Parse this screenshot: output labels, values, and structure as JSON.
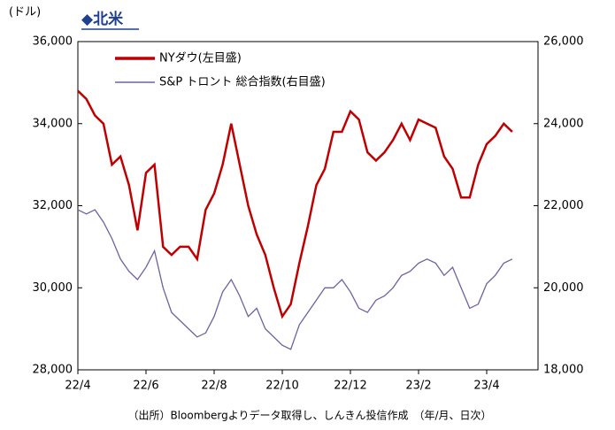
{
  "chart_data": {
    "type": "line",
    "title": "◆北米",
    "y_unit": "(ドル)",
    "source": "（出所）Bloombergよりデータ取得し、しんきん投信作成　（年/月、日次）",
    "categories": [
      "22/4",
      null,
      null,
      null,
      null,
      null,
      null,
      null,
      "22/6",
      null,
      null,
      null,
      null,
      null,
      null,
      null,
      "22/8",
      null,
      null,
      null,
      null,
      null,
      null,
      null,
      "22/10",
      null,
      null,
      null,
      null,
      null,
      null,
      null,
      "22/12",
      null,
      null,
      null,
      null,
      null,
      null,
      null,
      "23/2",
      null,
      null,
      null,
      null,
      null,
      null,
      null,
      "23/4",
      null,
      null,
      null
    ],
    "series": [
      {
        "name": "NYダウ(左目盛)",
        "color": "#c00000",
        "axis": "y",
        "values": [
          34800,
          34600,
          34200,
          34000,
          33000,
          33200,
          32500,
          31400,
          32800,
          33000,
          31000,
          30800,
          31000,
          31000,
          30700,
          31900,
          32300,
          33000,
          34000,
          33000,
          32000,
          31300,
          30800,
          30000,
          29300,
          29600,
          30600,
          31500,
          32500,
          32900,
          33800,
          33800,
          34300,
          34100,
          33300,
          33100,
          33300,
          33600,
          34000,
          33600,
          34100,
          34000,
          33900,
          33200,
          32900,
          32200,
          32200,
          33000,
          33500,
          33700,
          34000,
          33800
        ]
      },
      {
        "name": "S&P トロント 総合指数(右目盛)",
        "color": "#7060a0",
        "axis": "y2",
        "values": [
          21900,
          21800,
          21900,
          21600,
          21200,
          20700,
          20400,
          20200,
          20500,
          20900,
          20000,
          19400,
          19200,
          19000,
          18800,
          18900,
          19300,
          19900,
          20200,
          19800,
          19300,
          19500,
          19000,
          18800,
          18600,
          18500,
          19100,
          19400,
          19700,
          20000,
          20000,
          20200,
          19900,
          19500,
          19400,
          19700,
          19800,
          20000,
          20300,
          20400,
          20600,
          20700,
          20600,
          20300,
          20500,
          20000,
          19500,
          19600,
          20100,
          20300,
          20600,
          20700
        ]
      }
    ],
    "ylim": [
      28000,
      36000
    ],
    "yticks": [
      {
        "value": 28000,
        "label": "28,000"
      },
      {
        "value": 30000,
        "label": "30,000"
      },
      {
        "value": 32000,
        "label": "32,000"
      },
      {
        "value": 34000,
        "label": "34,000"
      },
      {
        "value": 36000,
        "label": "36,000"
      }
    ],
    "y2lim": [
      18000,
      26000
    ],
    "y2ticks": [
      {
        "value": 18000,
        "label": "18,000"
      },
      {
        "value": 20000,
        "label": "20,000"
      },
      {
        "value": 22000,
        "label": "22,000"
      },
      {
        "value": 24000,
        "label": "24,000"
      },
      {
        "value": 26000,
        "label": "26,000"
      }
    ]
  }
}
